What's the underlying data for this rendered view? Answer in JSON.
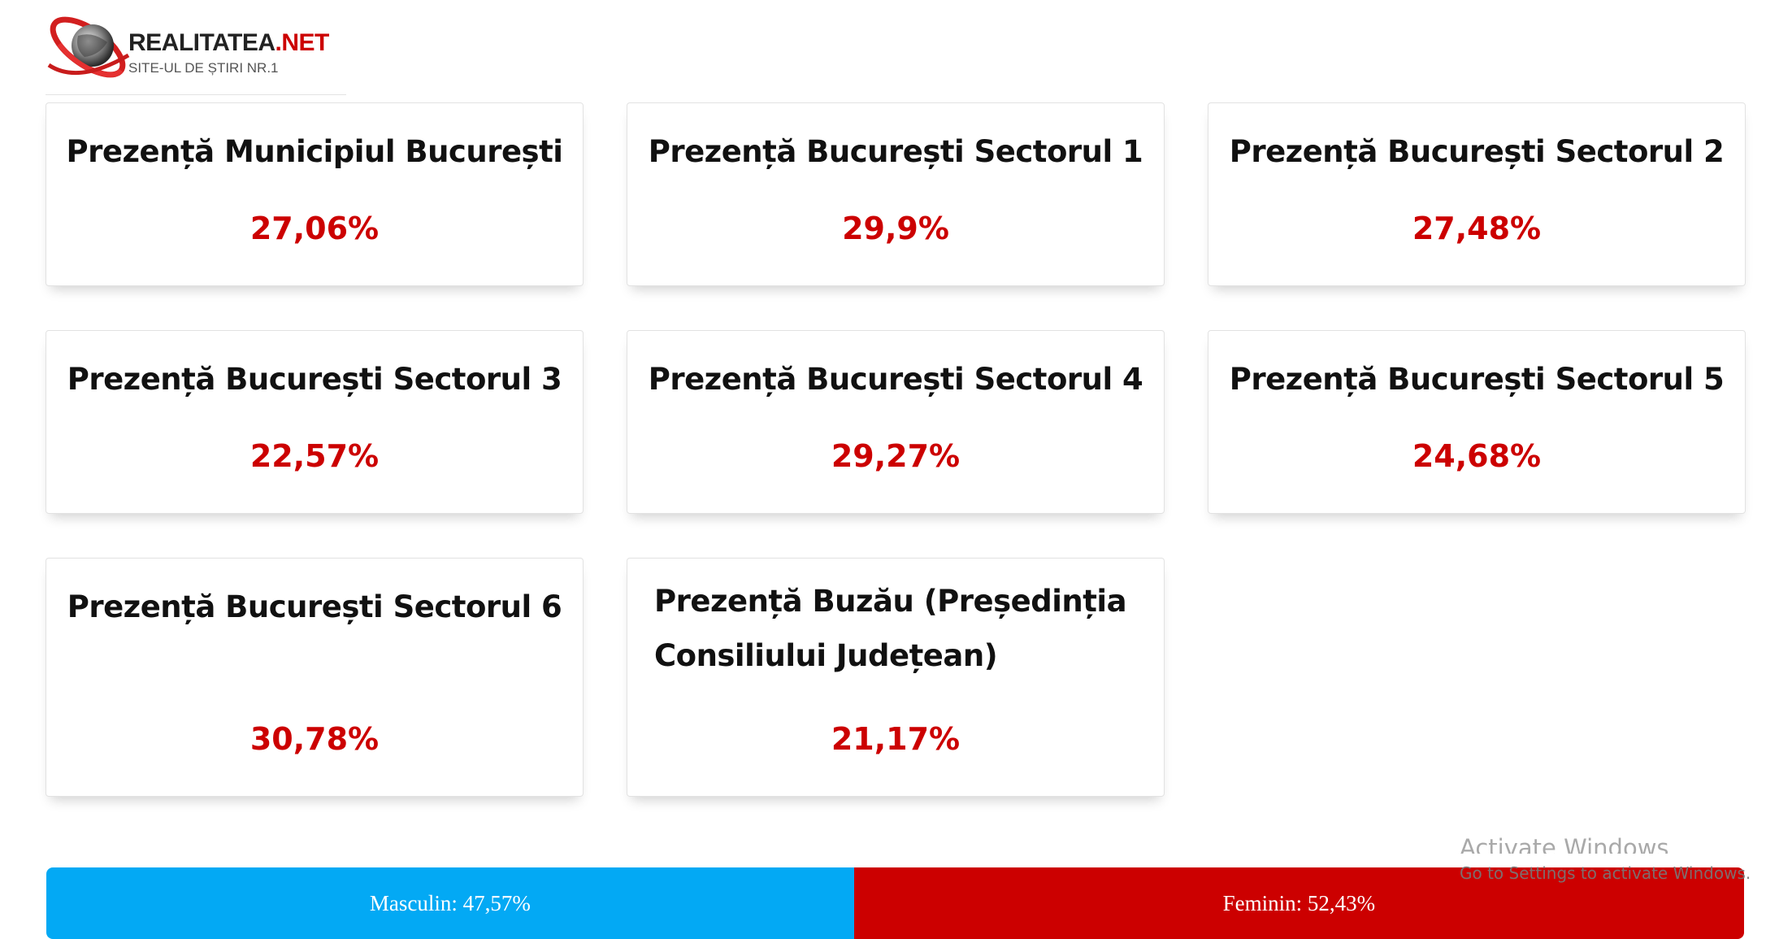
{
  "header": {
    "logo_name_dark": "REALITATEA",
    "logo_name_red": ".NET",
    "logo_tagline": "SITE-UL DE ȘTIRI NR.1",
    "logo_icon": "globe-swoosh-icon"
  },
  "cards": [
    {
      "title": "Prezență Municipiul București",
      "value": "27,06%"
    },
    {
      "title": "Prezență București Sectorul 1",
      "value": "29,9%"
    },
    {
      "title": "Prezență București Sectorul 2",
      "value": "27,48%"
    },
    {
      "title": "Prezență București Sectorul 3",
      "value": "22,57%"
    },
    {
      "title": "Prezență București Sectorul 4",
      "value": "29,27%"
    },
    {
      "title": "Prezență București Sectorul 5",
      "value": "24,68%"
    },
    {
      "title": "Prezență București Sectorul 6",
      "value": "30,78%"
    },
    {
      "title": "Prezență Buzău (Președinția Consiliului Județean)",
      "value": "21,17%"
    }
  ],
  "gender_bar": {
    "male": {
      "label": "Masculin: 47,57%",
      "share_percent": 47.57,
      "color": "#03a9f4"
    },
    "female": {
      "label": "Feminin: 52,43%",
      "share_percent": 52.43,
      "color": "#cc0000"
    }
  },
  "watermark": {
    "title": "Activate Windows",
    "subtitle": "Go to Settings to activate Windows."
  },
  "colors": {
    "accent_red": "#cc0000",
    "male_blue": "#03a9f4",
    "card_border": "#e2e2e2"
  }
}
